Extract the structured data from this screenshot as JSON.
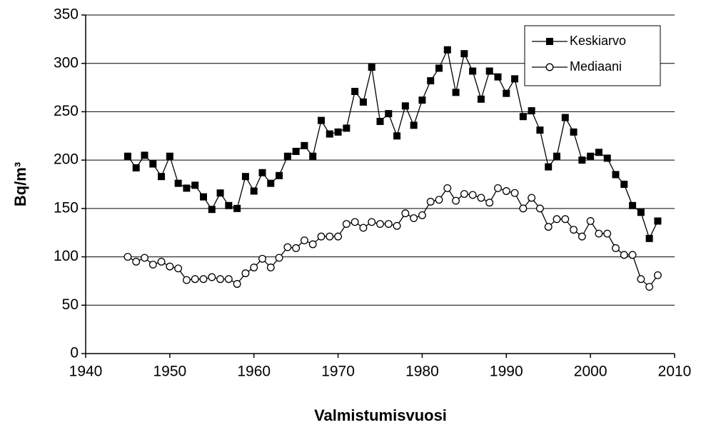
{
  "chart_data": {
    "type": "line",
    "xlabel": "Valmistumisvuosi",
    "ylabel": "Bq/m³",
    "x": [
      1945,
      1946,
      1947,
      1948,
      1949,
      1950,
      1951,
      1952,
      1953,
      1954,
      1955,
      1956,
      1957,
      1958,
      1959,
      1960,
      1961,
      1962,
      1963,
      1964,
      1965,
      1966,
      1967,
      1968,
      1969,
      1970,
      1971,
      1972,
      1973,
      1974,
      1975,
      1976,
      1977,
      1978,
      1979,
      1980,
      1981,
      1982,
      1983,
      1984,
      1985,
      1986,
      1987,
      1988,
      1989,
      1990,
      1991,
      1992,
      1993,
      1994,
      1995,
      1996,
      1997,
      1998,
      1999,
      2000,
      2001,
      2002,
      2003,
      2004,
      2005,
      2006,
      2007,
      2008
    ],
    "series": [
      {
        "name": "Keskiarvo",
        "color": "#000000",
        "marker": "square",
        "values": [
          204,
          192,
          205,
          196,
          183,
          204,
          176,
          171,
          174,
          162,
          149,
          166,
          153,
          150,
          183,
          168,
          187,
          176,
          184,
          204,
          209,
          215,
          204,
          241,
          227,
          229,
          233,
          271,
          260,
          296,
          240,
          248,
          225,
          256,
          236,
          262,
          282,
          295,
          314,
          270,
          310,
          292,
          263,
          292,
          286,
          269,
          284,
          245,
          251,
          231,
          193,
          204,
          244,
          229,
          200,
          204,
          208,
          202,
          185,
          175,
          153,
          146,
          119,
          137
        ]
      },
      {
        "name": "Mediaani",
        "color": "#000000",
        "marker": "circle-open",
        "values": [
          100,
          95,
          99,
          92,
          95,
          90,
          88,
          76,
          77,
          77,
          79,
          77,
          77,
          72,
          83,
          89,
          98,
          89,
          99,
          110,
          109,
          117,
          113,
          121,
          121,
          121,
          134,
          136,
          130,
          136,
          134,
          134,
          132,
          145,
          140,
          143,
          157,
          159,
          171,
          158,
          165,
          164,
          161,
          156,
          171,
          168,
          166,
          150,
          161,
          150,
          131,
          139,
          139,
          128,
          121,
          137,
          124,
          124,
          109,
          102,
          102,
          77,
          69,
          81
        ]
      }
    ],
    "xlim": [
      1940,
      2010
    ],
    "xticks": [
      1940,
      1950,
      1960,
      1970,
      1980,
      1990,
      2000,
      2010
    ],
    "ylim": [
      0,
      350
    ],
    "yticks": [
      0,
      50,
      100,
      150,
      200,
      250,
      300,
      350
    ],
    "grid": true,
    "legend": "upper right"
  }
}
